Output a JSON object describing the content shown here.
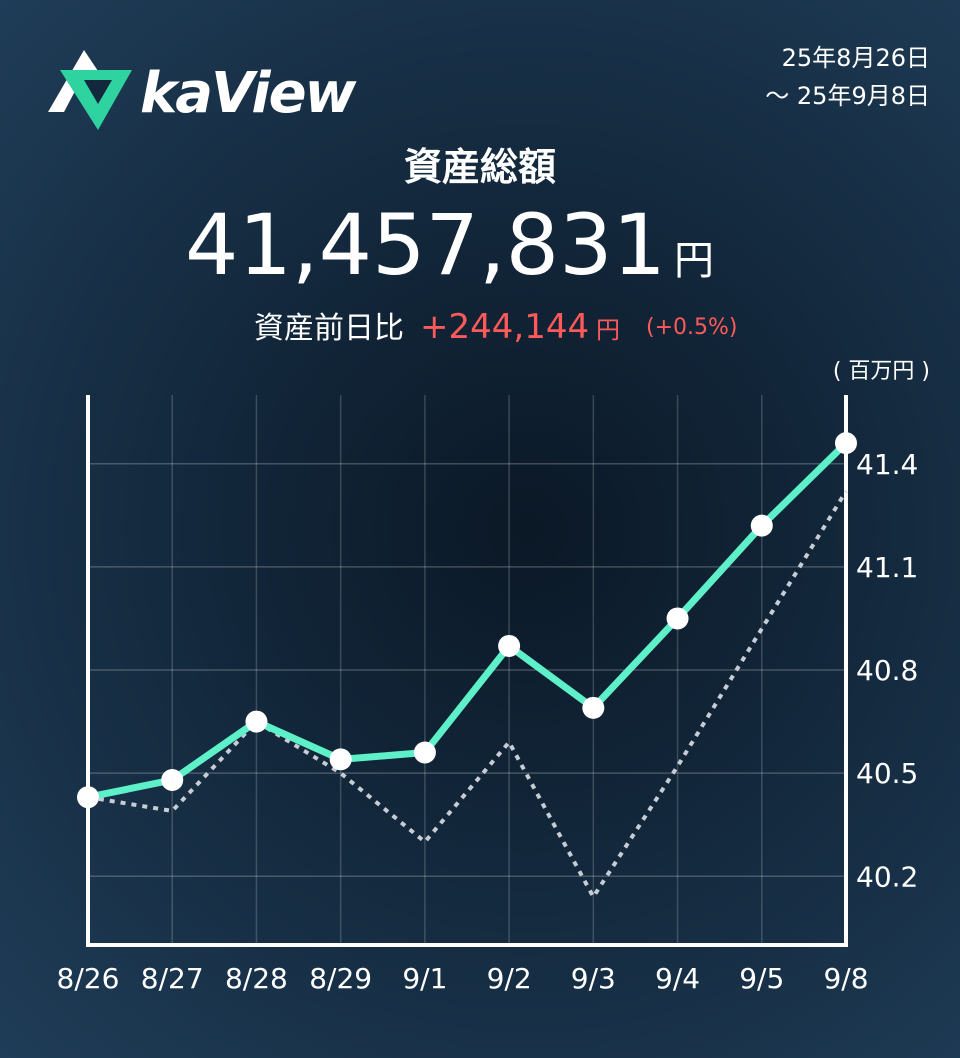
{
  "header": {
    "logo": "kaView",
    "date_from": "25年8月26日",
    "date_to": "～ 25年9月8日"
  },
  "summary": {
    "title": "資産総額",
    "total": "41,457,831",
    "total_unit": "円",
    "change_label": "資産前日比",
    "change": "+244,144",
    "change_unit": "円",
    "change_pct": "(+0.5%)"
  },
  "chart_data": {
    "type": "line",
    "unit_label": "( 百万円 )",
    "categories": [
      "8/26",
      "8/27",
      "8/28",
      "8/29",
      "9/1",
      "9/2",
      "9/3",
      "9/4",
      "9/5",
      "9/8"
    ],
    "series": [
      {
        "color": "#c8ccd4",
        "dashed": true,
        "markers": false,
        "values": [
          40.43,
          40.39,
          40.65,
          40.5,
          40.3,
          40.59,
          40.14,
          40.52,
          40.92,
          41.32
        ]
      },
      {
        "color": "#5ef0c8",
        "dashed": false,
        "markers": true,
        "values": [
          40.43,
          40.48,
          40.65,
          40.54,
          40.56,
          40.87,
          40.69,
          40.95,
          41.22,
          41.46
        ]
      }
    ],
    "ylim": [
      40.0,
      41.6
    ],
    "yticks": [
      40.2,
      40.5,
      40.8,
      41.1,
      41.4
    ],
    "grid": true,
    "y_axis_side": "right"
  }
}
